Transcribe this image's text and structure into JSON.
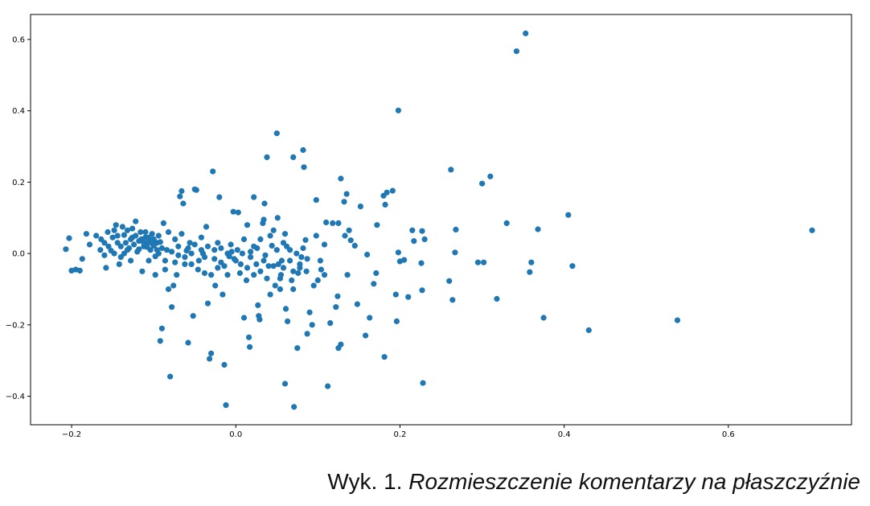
{
  "caption": {
    "prefix": "Wyk. 1.",
    "title": "Rozmieszczenie komentarzy na płaszczyźnie"
  },
  "chart_data": {
    "type": "scatter",
    "title": "",
    "xlabel": "",
    "ylabel": "",
    "xlim": [
      -0.25,
      0.75
    ],
    "ylim": [
      -0.48,
      0.67
    ],
    "xticks": [
      -0.2,
      0.0,
      0.2,
      0.4,
      0.6
    ],
    "xtick_labels": [
      "−0.2",
      "0.0",
      "0.2",
      "0.4",
      "0.6"
    ],
    "yticks": [
      -0.4,
      -0.2,
      0.0,
      0.2,
      0.4,
      0.6
    ],
    "ytick_labels": [
      "−0.4",
      "−0.2",
      "0.0",
      "0.2",
      "0.4",
      "0.6"
    ],
    "grid": false,
    "legend": "none",
    "marker_color": "#1f77b4",
    "points": [
      [
        0.353,
        0.617
      ],
      [
        0.342,
        0.567
      ],
      [
        0.198,
        0.401
      ],
      [
        0.702,
        0.065
      ],
      [
        0.538,
        -0.187
      ],
      [
        0.43,
        -0.215
      ],
      [
        0.375,
        -0.18
      ],
      [
        0.41,
        -0.035
      ],
      [
        0.405,
        0.108
      ],
      [
        0.368,
        0.068
      ],
      [
        0.36,
        -0.025
      ],
      [
        0.358,
        -0.052
      ],
      [
        0.33,
        0.085
      ],
      [
        0.318,
        -0.127
      ],
      [
        0.31,
        0.216
      ],
      [
        0.3,
        0.196
      ],
      [
        0.302,
        -0.025
      ],
      [
        0.295,
        -0.025
      ],
      [
        0.268,
        0.067
      ],
      [
        0.267,
        0.003
      ],
      [
        0.264,
        -0.13
      ],
      [
        0.262,
        0.235
      ],
      [
        0.26,
        -0.077
      ],
      [
        0.23,
        0.04
      ],
      [
        0.227,
        0.063
      ],
      [
        0.226,
        -0.027
      ],
      [
        0.227,
        -0.103
      ],
      [
        0.228,
        -0.363
      ],
      [
        0.215,
        0.065
      ],
      [
        0.217,
        0.035
      ],
      [
        0.21,
        -0.122
      ],
      [
        0.205,
        -0.018
      ],
      [
        0.2,
        -0.022
      ],
      [
        0.198,
        0.003
      ],
      [
        0.195,
        -0.115
      ],
      [
        0.196,
        -0.19
      ],
      [
        0.191,
        0.176
      ],
      [
        0.184,
        0.171
      ],
      [
        0.18,
        0.162
      ],
      [
        0.182,
        0.137
      ],
      [
        0.181,
        -0.29
      ],
      [
        0.172,
        0.08
      ],
      [
        0.171,
        -0.055
      ],
      [
        0.168,
        -0.085
      ],
      [
        0.163,
        -0.18
      ],
      [
        0.16,
        -0.003
      ],
      [
        0.158,
        -0.23
      ],
      [
        0.152,
        0.132
      ],
      [
        0.148,
        -0.142
      ],
      [
        0.145,
        0.022
      ],
      [
        0.14,
        0.037
      ],
      [
        0.138,
        0.065
      ],
      [
        0.136,
        -0.06
      ],
      [
        0.133,
        0.05
      ],
      [
        0.135,
        0.167
      ],
      [
        0.132,
        0.145
      ],
      [
        0.128,
        -0.255
      ],
      [
        0.125,
        -0.265
      ],
      [
        0.128,
        0.21
      ],
      [
        0.125,
        0.085
      ],
      [
        0.124,
        -0.12
      ],
      [
        0.122,
        -0.15
      ],
      [
        0.118,
        0.085
      ],
      [
        0.115,
        -0.195
      ],
      [
        0.112,
        -0.372
      ],
      [
        0.11,
        0.087
      ],
      [
        0.108,
        0.025
      ],
      [
        0.108,
        -0.06
      ],
      [
        0.104,
        -0.045
      ],
      [
        0.103,
        -0.02
      ],
      [
        0.1,
        -0.075
      ],
      [
        0.098,
        0.15
      ],
      [
        0.098,
        0.05
      ],
      [
        0.095,
        -0.09
      ],
      [
        0.093,
        -0.2
      ],
      [
        0.09,
        -0.165
      ],
      [
        0.087,
        -0.015
      ],
      [
        0.087,
        -0.225
      ],
      [
        0.085,
        0.038
      ],
      [
        0.083,
        0.242
      ],
      [
        0.082,
        0.29
      ],
      [
        0.08,
        -0.01
      ],
      [
        0.078,
        -0.04
      ],
      [
        0.076,
        -0.055
      ],
      [
        0.075,
        -0.265
      ],
      [
        0.071,
        -0.43
      ],
      [
        0.07,
        0.27
      ],
      [
        0.07,
        -0.1
      ],
      [
        0.068,
        -0.075
      ],
      [
        0.066,
        0.01
      ],
      [
        0.063,
        -0.19
      ],
      [
        0.061,
        -0.155
      ],
      [
        0.06,
        -0.365
      ],
      [
        0.06,
        0.055
      ],
      [
        0.058,
        0.03
      ],
      [
        0.056,
        -0.02
      ],
      [
        0.055,
        -0.06
      ],
      [
        0.054,
        -0.1
      ],
      [
        0.052,
        -0.03
      ],
      [
        0.051,
        0.1
      ],
      [
        0.05,
        0.337
      ],
      [
        0.048,
        -0.09
      ],
      [
        0.046,
        0.065
      ],
      [
        0.044,
        0.022
      ],
      [
        0.042,
        -0.115
      ],
      [
        0.04,
        -0.035
      ],
      [
        0.038,
        0.27
      ],
      [
        0.036,
        -0.005
      ],
      [
        0.035,
        0.14
      ],
      [
        0.034,
        0.095
      ],
      [
        0.033,
        0.085
      ],
      [
        0.03,
        -0.05
      ],
      [
        0.027,
        -0.145
      ],
      [
        0.028,
        -0.175
      ],
      [
        0.029,
        -0.185
      ],
      [
        0.025,
        -0.03
      ],
      [
        0.022,
        0.158
      ],
      [
        0.022,
        0.02
      ],
      [
        0.018,
        -0.01
      ],
      [
        0.016,
        -0.235
      ],
      [
        0.017,
        -0.262
      ],
      [
        0.014,
        0.08
      ],
      [
        0.013,
        -0.075
      ],
      [
        0.01,
        -0.18
      ],
      [
        0.008,
        0.0
      ],
      [
        0.005,
        -0.055
      ],
      [
        0.003,
        0.115
      ],
      [
        0.0,
        -0.02
      ],
      [
        -0.003,
        0.117
      ],
      [
        -0.005,
        0.005
      ],
      [
        -0.008,
        -0.008
      ],
      [
        -0.01,
        -0.06
      ],
      [
        -0.012,
        -0.425
      ],
      [
        -0.014,
        -0.312
      ],
      [
        -0.016,
        -0.115
      ],
      [
        -0.018,
        -0.025
      ],
      [
        -0.02,
        0.158
      ],
      [
        -0.022,
        -0.04
      ],
      [
        -0.025,
        -0.09
      ],
      [
        -0.026,
        0.01
      ],
      [
        -0.028,
        0.23
      ],
      [
        -0.03,
        -0.28
      ],
      [
        -0.032,
        -0.295
      ],
      [
        -0.034,
        -0.14
      ],
      [
        -0.036,
        0.075
      ],
      [
        -0.038,
        -0.055
      ],
      [
        -0.04,
        0.0
      ],
      [
        -0.042,
        0.045
      ],
      [
        -0.045,
        -0.02
      ],
      [
        -0.048,
        0.178
      ],
      [
        -0.05,
        0.18
      ],
      [
        -0.052,
        -0.175
      ],
      [
        -0.054,
        -0.03
      ],
      [
        -0.056,
        0.03
      ],
      [
        -0.058,
        -0.25
      ],
      [
        -0.06,
        0.008
      ],
      [
        -0.062,
        -0.03
      ],
      [
        -0.064,
        0.14
      ],
      [
        -0.066,
        0.175
      ],
      [
        -0.068,
        0.16
      ],
      [
        -0.07,
        -0.005
      ],
      [
        -0.072,
        -0.06
      ],
      [
        -0.074,
        0.04
      ],
      [
        -0.076,
        -0.09
      ],
      [
        -0.078,
        -0.15
      ],
      [
        -0.08,
        -0.345
      ],
      [
        -0.082,
        -0.1
      ],
      [
        -0.084,
        0.01
      ],
      [
        -0.086,
        -0.02
      ],
      [
        -0.088,
        0.085
      ],
      [
        -0.09,
        -0.21
      ],
      [
        -0.092,
        -0.245
      ],
      [
        -0.094,
        0.0
      ],
      [
        -0.096,
        0.03
      ],
      [
        -0.098,
        -0.06
      ],
      [
        -0.1,
        0.04
      ],
      [
        -0.102,
        0.055
      ],
      [
        -0.104,
        0.01
      ],
      [
        -0.106,
        -0.02
      ],
      [
        -0.108,
        0.03
      ],
      [
        -0.11,
        0.045
      ],
      [
        -0.112,
        0.02
      ],
      [
        -0.114,
        -0.05
      ],
      [
        -0.116,
        0.06
      ],
      [
        -0.118,
        0.035
      ],
      [
        -0.12,
        0.005
      ],
      [
        -0.122,
        0.09
      ],
      [
        -0.124,
        0.025
      ],
      [
        -0.126,
        0.045
      ],
      [
        -0.128,
        -0.02
      ],
      [
        -0.13,
        0.015
      ],
      [
        -0.132,
        0.065
      ],
      [
        -0.134,
        0.03
      ],
      [
        -0.136,
        0.0
      ],
      [
        -0.138,
        0.075
      ],
      [
        -0.14,
        0.02
      ],
      [
        -0.142,
        -0.03
      ],
      [
        -0.144,
        0.05
      ],
      [
        -0.146,
        0.08
      ],
      [
        -0.148,
        0.0
      ],
      [
        -0.15,
        0.045
      ],
      [
        -0.155,
        0.02
      ],
      [
        -0.158,
        -0.04
      ],
      [
        -0.16,
        0.03
      ],
      [
        -0.165,
        0.01
      ],
      [
        -0.17,
        0.05
      ],
      [
        -0.178,
        0.025
      ],
      [
        -0.182,
        0.055
      ],
      [
        -0.187,
        -0.015
      ],
      [
        -0.195,
        -0.045
      ],
      [
        -0.2,
        -0.048
      ],
      [
        -0.203,
        0.043
      ],
      [
        -0.207,
        0.012
      ],
      [
        -0.19,
        -0.048
      ],
      [
        -0.115,
        0.04
      ],
      [
        -0.112,
        0.03
      ],
      [
        -0.108,
        0.018
      ],
      [
        -0.104,
        0.035
      ],
      [
        -0.1,
        0.022
      ],
      [
        -0.118,
        0.012
      ],
      [
        -0.122,
        0.05
      ],
      [
        -0.126,
        0.07
      ],
      [
        -0.098,
        -0.008
      ],
      [
        -0.094,
        0.05
      ],
      [
        -0.09,
        0.015
      ],
      [
        -0.086,
        -0.045
      ],
      [
        -0.082,
        0.06
      ],
      [
        -0.078,
        0.005
      ],
      [
        -0.074,
        -0.025
      ],
      [
        -0.07,
        0.02
      ],
      [
        -0.066,
        0.055
      ],
      [
        -0.062,
        -0.01
      ],
      [
        -0.058,
        0.015
      ],
      [
        -0.054,
        0.0
      ],
      [
        -0.05,
        0.025
      ],
      [
        -0.046,
        -0.045
      ],
      [
        -0.042,
        0.01
      ],
      [
        -0.038,
        -0.01
      ],
      [
        -0.034,
        0.02
      ],
      [
        -0.03,
        -0.06
      ],
      [
        -0.026,
        -0.015
      ],
      [
        -0.022,
        0.03
      ],
      [
        -0.018,
        0.015
      ],
      [
        -0.014,
        -0.035
      ],
      [
        -0.01,
        0.0
      ],
      [
        -0.006,
        0.025
      ],
      [
        -0.002,
        -0.015
      ],
      [
        0.002,
        0.01
      ],
      [
        0.006,
        -0.03
      ],
      [
        0.01,
        0.04
      ],
      [
        0.014,
        -0.04
      ],
      [
        0.018,
        0.005
      ],
      [
        0.022,
        -0.06
      ],
      [
        0.026,
        0.015
      ],
      [
        0.03,
        0.04
      ],
      [
        0.034,
        -0.02
      ],
      [
        0.038,
        -0.07
      ],
      [
        0.042,
        0.05
      ],
      [
        0.046,
        -0.035
      ],
      [
        0.05,
        0.01
      ],
      [
        0.054,
        -0.07
      ],
      [
        0.058,
        -0.04
      ],
      [
        0.062,
        0.02
      ],
      [
        0.066,
        -0.02
      ],
      [
        0.07,
        -0.05
      ],
      [
        0.074,
        0.0
      ],
      [
        0.078,
        -0.03
      ],
      [
        0.082,
        0.015
      ],
      [
        0.086,
        -0.05
      ],
      [
        -0.11,
        0.06
      ],
      [
        -0.106,
        0.045
      ],
      [
        -0.102,
        0.028
      ],
      [
        -0.096,
        0.01
      ],
      [
        -0.092,
        0.032
      ],
      [
        -0.128,
        0.04
      ],
      [
        -0.132,
        0.01
      ],
      [
        -0.136,
        0.052
      ],
      [
        -0.14,
        -0.01
      ],
      [
        -0.144,
        0.03
      ],
      [
        -0.148,
        0.065
      ],
      [
        -0.152,
        0.008
      ],
      [
        -0.156,
        0.06
      ],
      [
        -0.16,
        -0.005
      ],
      [
        -0.164,
        0.04
      ]
    ]
  }
}
